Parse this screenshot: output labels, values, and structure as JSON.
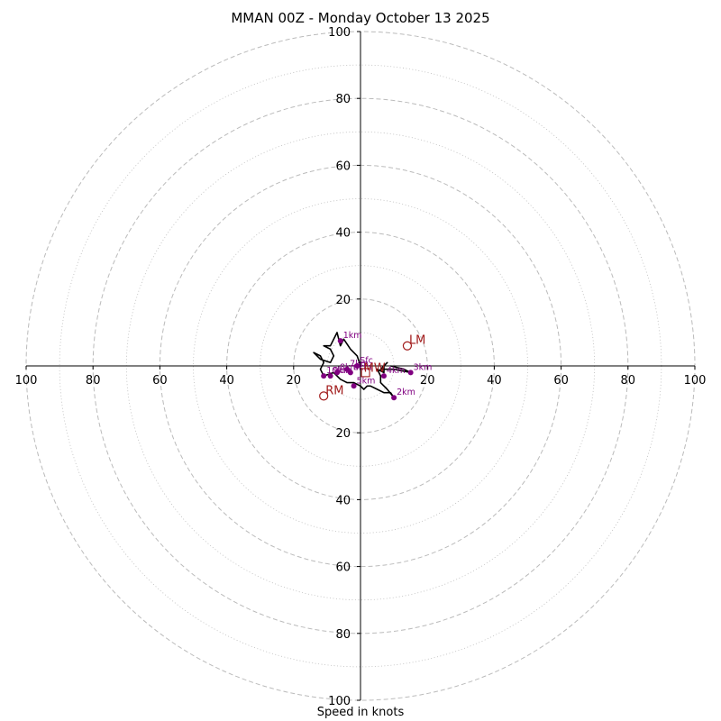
{
  "chart_data": {
    "type": "hodograph",
    "title": "MMAN 00Z - Monday October 13 2025",
    "xlabel": "Speed in knots",
    "units": "knots",
    "rmax": 100,
    "ring_labels": [
      "20",
      "40",
      "60",
      "80",
      "100"
    ],
    "ring_values": [
      20,
      40,
      60,
      80,
      100
    ],
    "x_tick_labels": [
      {
        "value": -100,
        "text": "100"
      },
      {
        "value": -80,
        "text": "80"
      },
      {
        "value": -60,
        "text": "60"
      },
      {
        "value": -40,
        "text": "40"
      },
      {
        "value": -20,
        "text": "20"
      },
      {
        "value": 20,
        "text": "20"
      },
      {
        "value": 40,
        "text": "40"
      },
      {
        "value": 60,
        "text": "60"
      },
      {
        "value": 80,
        "text": "80"
      },
      {
        "value": 100,
        "text": "100"
      }
    ],
    "y_tick_labels": [
      {
        "value": 100,
        "text": "100"
      },
      {
        "value": 80,
        "text": "80"
      },
      {
        "value": 60,
        "text": "60"
      },
      {
        "value": 40,
        "text": "40"
      },
      {
        "value": 20,
        "text": "20"
      },
      {
        "value": -20,
        "text": "20"
      },
      {
        "value": -40,
        "text": "40"
      },
      {
        "value": -60,
        "text": "60"
      },
      {
        "value": -80,
        "text": "80"
      },
      {
        "value": -100,
        "text": "100"
      }
    ],
    "grid": "dashed rings every 20 kt, dotted rings every 10 kt",
    "hodograph_trace": [
      [
        0,
        0
      ],
      [
        -1,
        3
      ],
      [
        -3,
        5
      ],
      [
        -5,
        8
      ],
      [
        -6,
        6
      ],
      [
        -7,
        10
      ],
      [
        -9,
        6
      ],
      [
        -11,
        6
      ],
      [
        -9,
        5
      ],
      [
        -8,
        3
      ],
      [
        -9,
        1
      ],
      [
        -12,
        2
      ],
      [
        -14,
        4
      ],
      [
        -12,
        3
      ],
      [
        -11,
        1
      ],
      [
        -12,
        -1
      ],
      [
        -11,
        -3
      ],
      [
        -8,
        -2
      ],
      [
        -6,
        -4
      ],
      [
        -4,
        -5
      ],
      [
        -2,
        -5
      ],
      [
        0,
        -6
      ],
      [
        1,
        -7
      ],
      [
        2,
        -6
      ],
      [
        3,
        -6
      ],
      [
        5,
        -7
      ],
      [
        7,
        -8
      ],
      [
        9,
        -8
      ],
      [
        10,
        -9.5
      ],
      [
        8,
        -7
      ],
      [
        6,
        -5
      ],
      [
        6,
        -3
      ],
      [
        5,
        -1
      ],
      [
        7,
        -2
      ],
      [
        7,
        0
      ],
      [
        8,
        1
      ],
      [
        6,
        -1
      ],
      [
        9,
        -1
      ],
      [
        10,
        -1
      ],
      [
        15,
        -2
      ],
      [
        13,
        -1
      ],
      [
        9,
        0
      ]
    ],
    "height_markers": [
      {
        "label": "Sfc",
        "u": -1,
        "v": 0
      },
      {
        "label": "1km",
        "u": -6,
        "v": 7.5
      },
      {
        "label": "2km",
        "u": 10,
        "v": -9.5
      },
      {
        "label": "3km",
        "u": 15,
        "v": -2
      },
      {
        "label": "4km",
        "u": 7,
        "v": -3
      },
      {
        "label": "5km",
        "u": -2,
        "v": -6
      },
      {
        "label": "6km",
        "u": -3,
        "v": -2
      },
      {
        "label": "7km",
        "u": -4,
        "v": -1
      },
      {
        "label": "8km",
        "u": -7,
        "v": -2
      },
      {
        "label": "9km",
        "u": -9,
        "v": -3
      },
      {
        "label": "10km",
        "u": -11,
        "v": -3
      }
    ],
    "motion_markers": [
      {
        "label": "LM",
        "u": 14,
        "v": 6
      },
      {
        "label": "RM",
        "u": -11,
        "v": -9
      },
      {
        "label": "MW",
        "u": 1.5,
        "v": -2
      }
    ],
    "colors": {
      "trace": "#000000",
      "height_marker": "#800080",
      "motion_marker": "#a11a1a",
      "grid": "#bbbbbb"
    }
  }
}
